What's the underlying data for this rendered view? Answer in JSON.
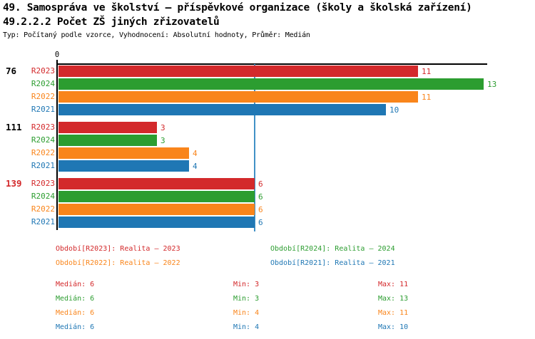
{
  "header": {
    "title_line1": "49. Samospráva ve školství – příspěvkové organizace (školy a školská zařízení)",
    "title_line2": "49.2.2.2 Počet ZŠ jiných zřizovatelů",
    "subtitle": "Typ: Počítaný podle vzorce, Vyhodnocení: Absolutní hodnoty, Průměr: Medián"
  },
  "colors": {
    "r2023": "#d3292b",
    "r2024": "#2c9d30",
    "r2022": "#f9851b",
    "r2021": "#1f77b4",
    "median_line": "#4191c6",
    "axis": "#000000",
    "highlight_group": "#d3292b"
  },
  "chart_data": {
    "type": "bar",
    "orientation": "horizontal",
    "title": "49.2.2.2 Počet ZŠ jiných zřizovatelů",
    "x_origin_label": "0",
    "xlim": [
      0,
      13.15
    ],
    "grid": false,
    "median_line_value": 6,
    "series_order": [
      {
        "name": "R2023",
        "color": "#d3292b"
      },
      {
        "name": "R2024",
        "color": "#2c9d30"
      },
      {
        "name": "R2022",
        "color": "#f9851b"
      },
      {
        "name": "R2021",
        "color": "#1f77b4"
      }
    ],
    "groups": [
      {
        "label": "76",
        "label_color": "#000000",
        "values": [
          11,
          13,
          11,
          10
        ]
      },
      {
        "label": "111",
        "label_color": "#000000",
        "values": [
          3,
          3,
          4,
          4
        ]
      },
      {
        "label": "139",
        "label_color": "#d3292b",
        "values": [
          6,
          6,
          6,
          6
        ]
      }
    ]
  },
  "legend": {
    "items": [
      {
        "name": "R2023",
        "label": "Období[R2023]: Realita – 2023",
        "color": "#d3292b"
      },
      {
        "name": "R2024",
        "label": "Období[R2024]: Realita – 2024",
        "color": "#2c9d30"
      },
      {
        "name": "R2022",
        "label": "Období[R2022]: Realita – 2022",
        "color": "#f9851b"
      },
      {
        "name": "R2021",
        "label": "Období[R2021]: Realita – 2021",
        "color": "#1f77b4"
      }
    ]
  },
  "stats": {
    "labels": {
      "median": "Medián",
      "min": "Min",
      "max": "Max"
    },
    "rows": [
      {
        "series": "R2023",
        "color": "#d3292b",
        "median": 6,
        "min": 3,
        "max": 11
      },
      {
        "series": "R2024",
        "color": "#2c9d30",
        "median": 6,
        "min": 3,
        "max": 13
      },
      {
        "series": "R2022",
        "color": "#f9851b",
        "median": 6,
        "min": 4,
        "max": 11
      },
      {
        "series": "R2021",
        "color": "#1f77b4",
        "median": 6,
        "min": 4,
        "max": 10
      }
    ]
  }
}
